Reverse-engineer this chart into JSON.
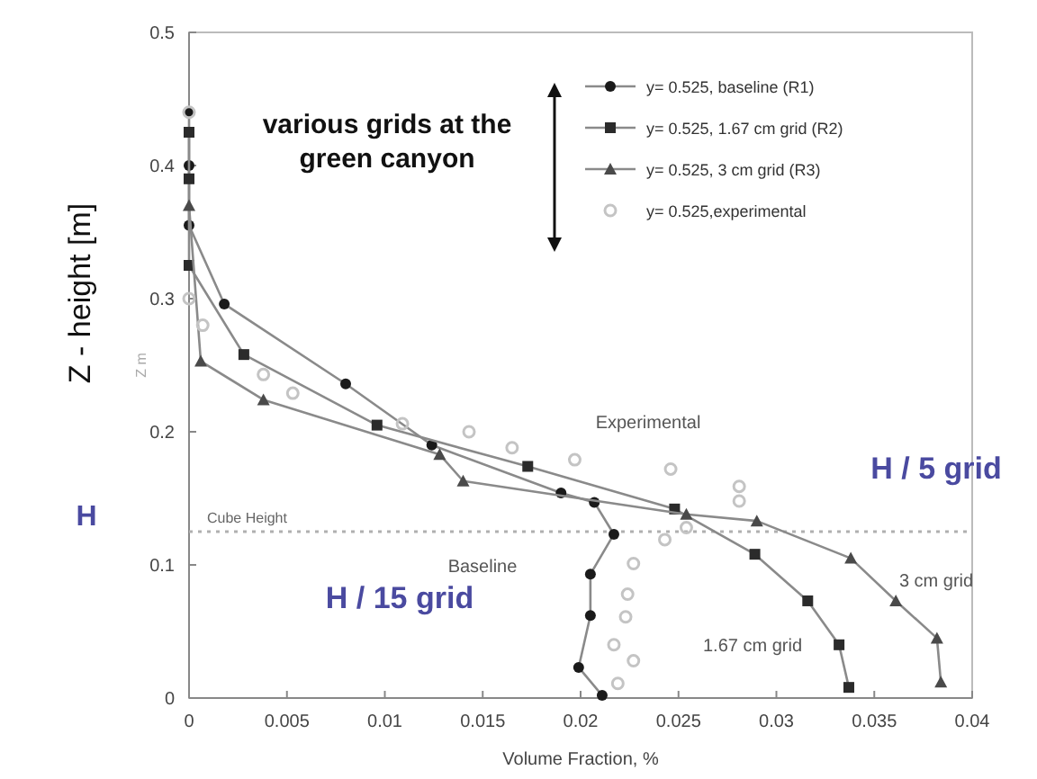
{
  "chart_data": {
    "type": "line",
    "title": "various grids at the green canyon",
    "xlabel": "Volume Fraction, %",
    "ylabel": "Z - height [m]",
    "xlim": [
      0,
      0.04
    ],
    "ylim": [
      0,
      0.5
    ],
    "xticks": [
      0,
      0.005,
      0.01,
      0.015,
      0.02,
      0.025,
      0.03,
      0.035,
      0.04
    ],
    "yticks": [
      0,
      0.1,
      0.2,
      0.3,
      0.4,
      0.5
    ],
    "grid": false,
    "legend": "top right",
    "line_style": "solid",
    "series": [
      {
        "name": "y= 0.525, baseline (R1)",
        "color": "#1a1a1a",
        "marker": "circle",
        "x": [
          0,
          0,
          0,
          0.0018,
          0.008,
          0.0124,
          0.019,
          0.0207,
          0.0217,
          0.0205,
          0.0205,
          0.0199,
          0.0211
        ],
        "values": [
          0.44,
          0.4,
          0.355,
          0.296,
          0.236,
          0.19,
          0.154,
          0.147,
          0.123,
          0.093,
          0.062,
          0.023,
          0.002
        ]
      },
      {
        "name": "y= 0.525, 1.67 cm grid (R2)",
        "color": "#2b2b2b",
        "marker": "square",
        "x": [
          0,
          0,
          0,
          0.0028,
          0.0096,
          0.0173,
          0.0248,
          0.0289,
          0.0316,
          0.0332,
          0.0337
        ],
        "values": [
          0.425,
          0.39,
          0.325,
          0.258,
          0.205,
          0.174,
          0.142,
          0.108,
          0.073,
          0.04,
          0.008
        ]
      },
      {
        "name": "y= 0.525, 3 cm grid (R3)",
        "color": "#4a4a4a",
        "marker": "triangle",
        "x": [
          0,
          0.0006,
          0.0038,
          0.0128,
          0.014,
          0.0254,
          0.029,
          0.0338,
          0.0361,
          0.0382,
          0.0384
        ],
        "values": [
          0.37,
          0.253,
          0.224,
          0.183,
          0.163,
          0.138,
          0.133,
          0.105,
          0.073,
          0.045,
          0.012
        ]
      },
      {
        "name": "y= 0.525,experimental",
        "color": "#c4c4c4",
        "type": "scatter",
        "marker": "circle",
        "x": [
          0,
          0,
          0.0007,
          0.0038,
          0.0053,
          0.0109,
          0.0143,
          0.0165,
          0.0197,
          0.0246,
          0.0281,
          0.0281,
          0.0254,
          0.0243,
          0.0227,
          0.0224,
          0.0223,
          0.0217,
          0.0227,
          0.0219
        ],
        "values": [
          0.44,
          0.3,
          0.28,
          0.243,
          0.229,
          0.206,
          0.2,
          0.188,
          0.179,
          0.172,
          0.159,
          0.148,
          0.128,
          0.119,
          0.101,
          0.078,
          0.061,
          0.04,
          0.028,
          0.011
        ]
      }
    ],
    "ref_lines": [
      {
        "axis": "y",
        "value": 0.125,
        "label": "Cube Height",
        "color": "#b0b0b0",
        "line_style": "dotted"
      }
    ],
    "annotations": [
      "Z m",
      "Experimental",
      "Baseline",
      "3 cm grid",
      "1.67 cm grid",
      "H / 15 grid",
      "H / 5 grid",
      "H"
    ]
  }
}
